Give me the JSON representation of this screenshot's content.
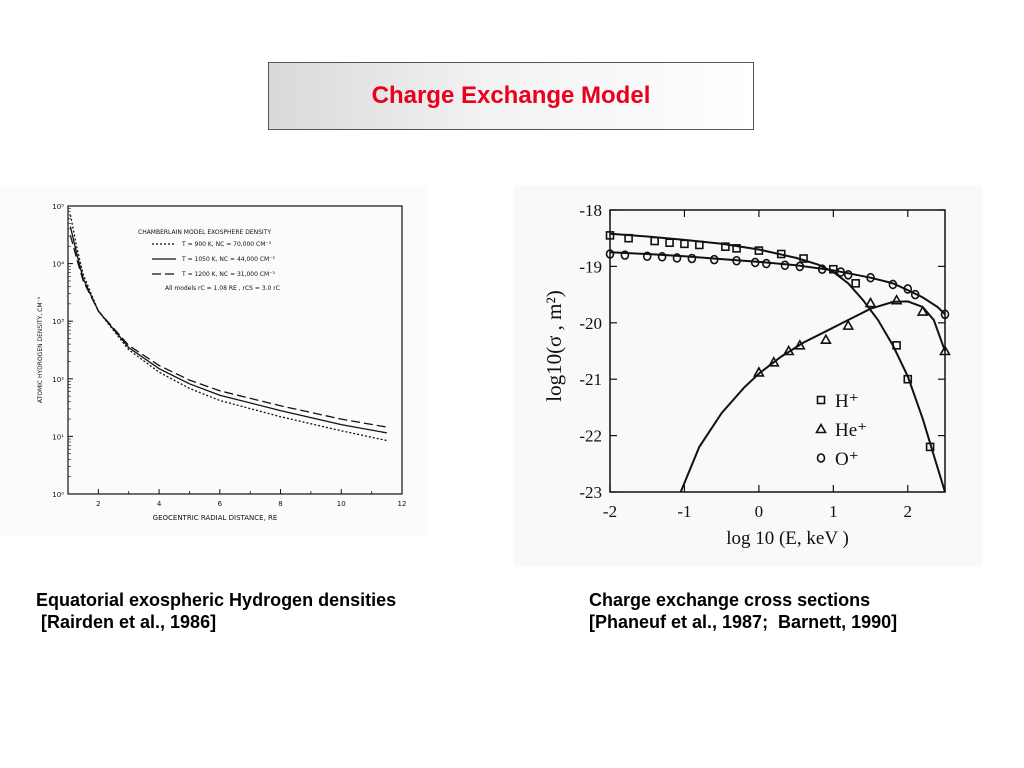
{
  "slide_title": "Charge Exchange Model",
  "captions": {
    "left_line1": "Equatorial exospheric Hydrogen densities",
    "left_line2": " [Rairden et al., 1986]",
    "right_line1": "Charge exchange cross sections",
    "right_line2": "[Phaneuf et al., 1987;  Barnett, 1990]"
  },
  "chart_data": [
    {
      "type": "line",
      "title": "CHAMBERLAIN MODEL EXOSPHERE DENSITY",
      "xlabel": "GEOCENTRIC RADIAL DISTANCE, RE",
      "ylabel": "ATOMIC HYDROGEN DENSITY, CM⁻³",
      "xlim": [
        1,
        12
      ],
      "ylim_log10": [
        0,
        5
      ],
      "y_scale": "log",
      "x_ticks": [
        2,
        4,
        6,
        8,
        10,
        12
      ],
      "y_ticks": [
        {
          "value": 1,
          "label": "10⁰"
        },
        {
          "value": 10,
          "label": "10¹"
        },
        {
          "value": 100,
          "label": "10²"
        },
        {
          "value": 1000,
          "label": "10³"
        },
        {
          "value": 10000,
          "label": "10⁴"
        },
        {
          "value": 100000,
          "label": "10⁵"
        }
      ],
      "legend": [
        {
          "text": "T = 900 K,  NC = 70,000 CM⁻³",
          "style": "dotted"
        },
        {
          "text": "T = 1050 K,  NC = 44,000 CM⁻³",
          "style": "solid"
        },
        {
          "text": "T = 1200 K,  NC = 31,000 CM⁻³",
          "style": "dashed"
        }
      ],
      "annotation": "All models  rC = 1.08 RE ,  rCS = 3.0 rC",
      "series": [
        {
          "name": "T = 900 K,  NC = 70,000 CM⁻³",
          "style": "dotted",
          "x": [
            1.08,
            1.3,
            1.5,
            2,
            3,
            4,
            5,
            6,
            8,
            10,
            11.5
          ],
          "y": [
            70000,
            18000,
            6500,
            1500,
            320,
            130,
            68,
            42,
            22,
            12.5,
            8.5
          ]
        },
        {
          "name": "T = 1050 K,  NC = 44,000 CM⁻³",
          "style": "solid",
          "x": [
            1.08,
            1.3,
            1.5,
            2,
            3,
            4,
            5,
            6,
            8,
            10,
            11.5
          ],
          "y": [
            44000,
            14000,
            5500,
            1500,
            350,
            150,
            82,
            52,
            28,
            16,
            11.5
          ]
        },
        {
          "name": "T = 1200 K,  NC = 31,000 CM⁻³",
          "style": "dashed",
          "x": [
            1.08,
            1.3,
            1.5,
            2,
            3,
            4,
            5,
            6,
            8,
            10,
            11.5
          ],
          "y": [
            31000,
            11500,
            5000,
            1500,
            380,
            170,
            95,
            62,
            34,
            20,
            14.5
          ]
        }
      ]
    },
    {
      "type": "line",
      "xlabel": "log 10 (E, keV )",
      "ylabel": "log10(σ , m²)",
      "xlim": [
        -2,
        2.5
      ],
      "ylim": [
        -23,
        -18
      ],
      "x_ticks": [
        -2,
        -1,
        0,
        1,
        2
      ],
      "y_ticks": [
        -18,
        -19,
        -20,
        -21,
        -22,
        -23
      ],
      "legend": [
        {
          "text": "H⁺",
          "marker": "square"
        },
        {
          "text": "He⁺",
          "marker": "triangle"
        },
        {
          "text": "O⁺",
          "marker": "circle"
        }
      ],
      "series": [
        {
          "name": "H⁺",
          "marker": "square",
          "points_x": [
            -2,
            -1.75,
            -1.4,
            -1.2,
            -1,
            -0.8,
            -0.45,
            -0.3,
            0,
            0.3,
            0.6,
            1,
            1.3,
            1.85,
            2,
            2.3
          ],
          "points_y": [
            -18.45,
            -18.5,
            -18.55,
            -18.58,
            -18.6,
            -18.62,
            -18.65,
            -18.68,
            -18.72,
            -18.78,
            -18.86,
            -19.05,
            -19.3,
            -20.4,
            -21.0,
            -22.2
          ],
          "curve_x": [
            -2,
            -1.5,
            -1,
            -0.5,
            0,
            0.5,
            0.8,
            1,
            1.2,
            1.4,
            1.6,
            1.8,
            2,
            2.2,
            2.35,
            2.5
          ],
          "curve_y": [
            -18.42,
            -18.47,
            -18.53,
            -18.6,
            -18.7,
            -18.85,
            -18.97,
            -19.1,
            -19.3,
            -19.6,
            -19.95,
            -20.4,
            -20.95,
            -21.7,
            -22.35,
            -23.0
          ]
        },
        {
          "name": "He⁺",
          "marker": "triangle",
          "points_x": [
            0,
            0.2,
            0.4,
            0.55,
            0.9,
            1.2,
            1.5,
            1.85,
            2.2,
            2.5
          ],
          "points_y": [
            -20.88,
            -20.7,
            -20.5,
            -20.4,
            -20.3,
            -20.05,
            -19.65,
            -19.6,
            -19.8,
            -20.5
          ],
          "curve_x": [
            -1.05,
            -0.8,
            -0.5,
            -0.2,
            0,
            0.3,
            0.6,
            0.9,
            1.2,
            1.5,
            1.8,
            2.0,
            2.2,
            2.35,
            2.5
          ],
          "curve_y": [
            -23.0,
            -22.2,
            -21.6,
            -21.15,
            -20.9,
            -20.6,
            -20.35,
            -20.15,
            -19.95,
            -19.75,
            -19.63,
            -19.62,
            -19.72,
            -19.95,
            -20.5
          ]
        },
        {
          "name": "O⁺",
          "marker": "circle",
          "points_x": [
            -2,
            -1.8,
            -1.5,
            -1.3,
            -1.1,
            -0.9,
            -0.6,
            -0.3,
            -0.05,
            0.1,
            0.35,
            0.55,
            0.85,
            1.1,
            1.2,
            1.5,
            1.8,
            2,
            2.1,
            2.5
          ],
          "points_y": [
            -18.78,
            -18.8,
            -18.82,
            -18.83,
            -18.85,
            -18.86,
            -18.88,
            -18.9,
            -18.93,
            -18.95,
            -18.98,
            -19.0,
            -19.05,
            -19.1,
            -19.15,
            -19.2,
            -19.32,
            -19.4,
            -19.5,
            -19.85
          ],
          "curve_x": [
            -2,
            -1.5,
            -1,
            -0.5,
            0,
            0.5,
            1,
            1.5,
            1.8,
            2,
            2.2,
            2.4,
            2.5
          ],
          "curve_y": [
            -18.75,
            -18.78,
            -18.82,
            -18.87,
            -18.92,
            -18.98,
            -19.07,
            -19.2,
            -19.3,
            -19.42,
            -19.55,
            -19.72,
            -19.85
          ]
        }
      ]
    }
  ]
}
